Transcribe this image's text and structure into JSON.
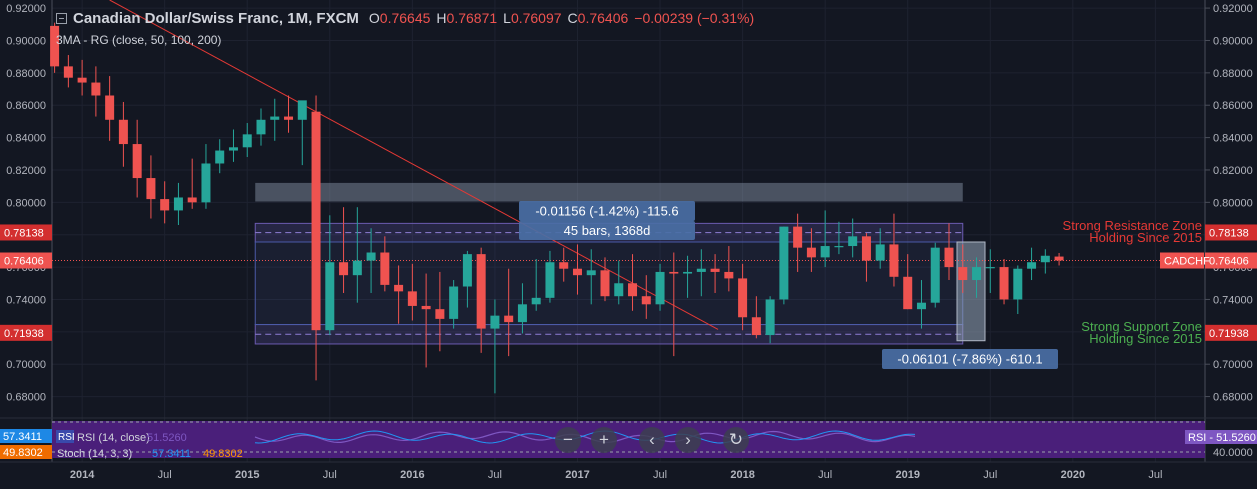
{
  "header": {
    "symbol": "Canadian Dollar/Swiss Franc, 1M, FXCM",
    "o_label": "O",
    "o": "0.76645",
    "h_label": "H",
    "h": "0.76871",
    "l_label": "L",
    "l": "0.76097",
    "c_label": "C",
    "c": "0.76406",
    "change": "−0.00239 (−0.31%)"
  },
  "indicator_line": "3MA - RG (close, 50, 100, 200)",
  "colors": {
    "background": "#131722",
    "up": "#26a69a",
    "down": "#ef5350",
    "resistance_text": "#e53935",
    "support_text": "#4caf50",
    "measure_box": "#4a6fa5",
    "rsi_panel": "#4a1f7a",
    "trendline": "#e53935"
  },
  "chart_data": {
    "type": "candlestick",
    "instrument": "CADCHF",
    "timeframe": "1M",
    "x_axis_labels": [
      "2014",
      "Jul",
      "2015",
      "Jul",
      "2016",
      "Jul",
      "2017",
      "Jul",
      "2018",
      "Jul",
      "2019",
      "Jul",
      "2020",
      "Jul"
    ],
    "y_axis_ticks": [
      "0.92000",
      "0.90000",
      "0.88000",
      "0.86000",
      "0.84000",
      "0.82000",
      "0.80000",
      "0.78000",
      "0.76000",
      "0.74000",
      "0.72000",
      "0.70000",
      "0.68000"
    ],
    "ylim": [
      0.668,
      0.925
    ],
    "start": "2013-11",
    "candles": [
      [
        0.909,
        0.911,
        0.88,
        0.884
      ],
      [
        0.884,
        0.891,
        0.871,
        0.877
      ],
      [
        0.877,
        0.888,
        0.866,
        0.874
      ],
      [
        0.874,
        0.884,
        0.853,
        0.866
      ],
      [
        0.866,
        0.878,
        0.838,
        0.851
      ],
      [
        0.851,
        0.862,
        0.822,
        0.836
      ],
      [
        0.836,
        0.851,
        0.803,
        0.815
      ],
      [
        0.815,
        0.829,
        0.79,
        0.802
      ],
      [
        0.802,
        0.813,
        0.787,
        0.795
      ],
      [
        0.795,
        0.812,
        0.786,
        0.803
      ],
      [
        0.803,
        0.827,
        0.796,
        0.8
      ],
      [
        0.8,
        0.836,
        0.796,
        0.824
      ],
      [
        0.824,
        0.839,
        0.818,
        0.832
      ],
      [
        0.832,
        0.845,
        0.825,
        0.834
      ],
      [
        0.834,
        0.849,
        0.828,
        0.842
      ],
      [
        0.842,
        0.858,
        0.835,
        0.851
      ],
      [
        0.851,
        0.864,
        0.838,
        0.853
      ],
      [
        0.853,
        0.866,
        0.843,
        0.851
      ],
      [
        0.851,
        0.862,
        0.823,
        0.863
      ],
      [
        0.856,
        0.866,
        0.69,
        0.721
      ],
      [
        0.721,
        0.792,
        0.718,
        0.763
      ],
      [
        0.763,
        0.797,
        0.744,
        0.755
      ],
      [
        0.755,
        0.797,
        0.738,
        0.764
      ],
      [
        0.764,
        0.784,
        0.744,
        0.769
      ],
      [
        0.769,
        0.779,
        0.745,
        0.749
      ],
      [
        0.749,
        0.761,
        0.725,
        0.745
      ],
      [
        0.745,
        0.762,
        0.727,
        0.736
      ],
      [
        0.736,
        0.756,
        0.698,
        0.734
      ],
      [
        0.734,
        0.757,
        0.708,
        0.728
      ],
      [
        0.728,
        0.752,
        0.722,
        0.748
      ],
      [
        0.748,
        0.77,
        0.735,
        0.768
      ],
      [
        0.768,
        0.772,
        0.707,
        0.722
      ],
      [
        0.722,
        0.74,
        0.682,
        0.73
      ],
      [
        0.73,
        0.759,
        0.705,
        0.726
      ],
      [
        0.726,
        0.75,
        0.719,
        0.737
      ],
      [
        0.737,
        0.765,
        0.733,
        0.741
      ],
      [
        0.741,
        0.77,
        0.738,
        0.763
      ],
      [
        0.763,
        0.772,
        0.751,
        0.759
      ],
      [
        0.759,
        0.774,
        0.743,
        0.755
      ],
      [
        0.755,
        0.771,
        0.737,
        0.758
      ],
      [
        0.758,
        0.766,
        0.739,
        0.742
      ],
      [
        0.742,
        0.764,
        0.737,
        0.75
      ],
      [
        0.75,
        0.768,
        0.733,
        0.742
      ],
      [
        0.742,
        0.755,
        0.728,
        0.737
      ],
      [
        0.737,
        0.762,
        0.733,
        0.757
      ],
      [
        0.757,
        0.769,
        0.705,
        0.756
      ],
      [
        0.756,
        0.767,
        0.741,
        0.757
      ],
      [
        0.757,
        0.771,
        0.742,
        0.759
      ],
      [
        0.759,
        0.768,
        0.744,
        0.757
      ],
      [
        0.757,
        0.773,
        0.745,
        0.753
      ],
      [
        0.753,
        0.762,
        0.721,
        0.729
      ],
      [
        0.729,
        0.742,
        0.716,
        0.718
      ],
      [
        0.718,
        0.742,
        0.713,
        0.74
      ],
      [
        0.74,
        0.785,
        0.737,
        0.785
      ],
      [
        0.785,
        0.793,
        0.757,
        0.772
      ],
      [
        0.772,
        0.784,
        0.757,
        0.766
      ],
      [
        0.766,
        0.795,
        0.76,
        0.773
      ],
      [
        0.773,
        0.788,
        0.768,
        0.773
      ],
      [
        0.773,
        0.79,
        0.766,
        0.779
      ],
      [
        0.779,
        0.781,
        0.751,
        0.764
      ],
      [
        0.764,
        0.784,
        0.759,
        0.774
      ],
      [
        0.774,
        0.793,
        0.748,
        0.754
      ],
      [
        0.754,
        0.768,
        0.734,
        0.734
      ],
      [
        0.734,
        0.752,
        0.722,
        0.738
      ],
      [
        0.738,
        0.775,
        0.735,
        0.772
      ],
      [
        0.772,
        0.787,
        0.752,
        0.76
      ],
      [
        0.76,
        0.774,
        0.744,
        0.752
      ],
      [
        0.752,
        0.766,
        0.741,
        0.76
      ],
      [
        0.76,
        0.771,
        0.744,
        0.76
      ],
      [
        0.76,
        0.765,
        0.737,
        0.74
      ],
      [
        0.74,
        0.761,
        0.731,
        0.759
      ],
      [
        0.759,
        0.772,
        0.752,
        0.763
      ],
      [
        0.763,
        0.771,
        0.756,
        0.767
      ],
      [
        0.7665,
        0.7687,
        0.761,
        0.7641
      ]
    ],
    "last_price": "0.76406",
    "last_price_tag": "CADCHF",
    "resistance_price": "0.78138",
    "support_price": "0.71938",
    "annotations": {
      "resistance_line1": "Strong Resistance Zone",
      "resistance_line2": "Holding Since 2015",
      "support_line1": "Strong Support Zone",
      "support_line2": "Holding Since 2015",
      "measure_top": "-0.01156 (-1.42%) -115.6",
      "measure_bars": "45 bars, 1368d",
      "measure_bottom": "-0.06101 (-7.86%) -610.1"
    },
    "rsi": {
      "label": "RSI (14, close)",
      "value": "51.5260",
      "tag": "RSI",
      "stoch_label": "Stoch (14, 3, 3)",
      "stoch_k": "57.3411",
      "stoch_d": "49.8302",
      "axis_value": "40.0000",
      "left_k": "57.3411",
      "left_d": "49.8302",
      "left_rsi_tag": "RSI"
    }
  },
  "toolbar": {
    "zoom_out": "−",
    "zoom_in": "+",
    "scroll_left": "‹",
    "scroll_right": "›",
    "reset": "↻"
  }
}
